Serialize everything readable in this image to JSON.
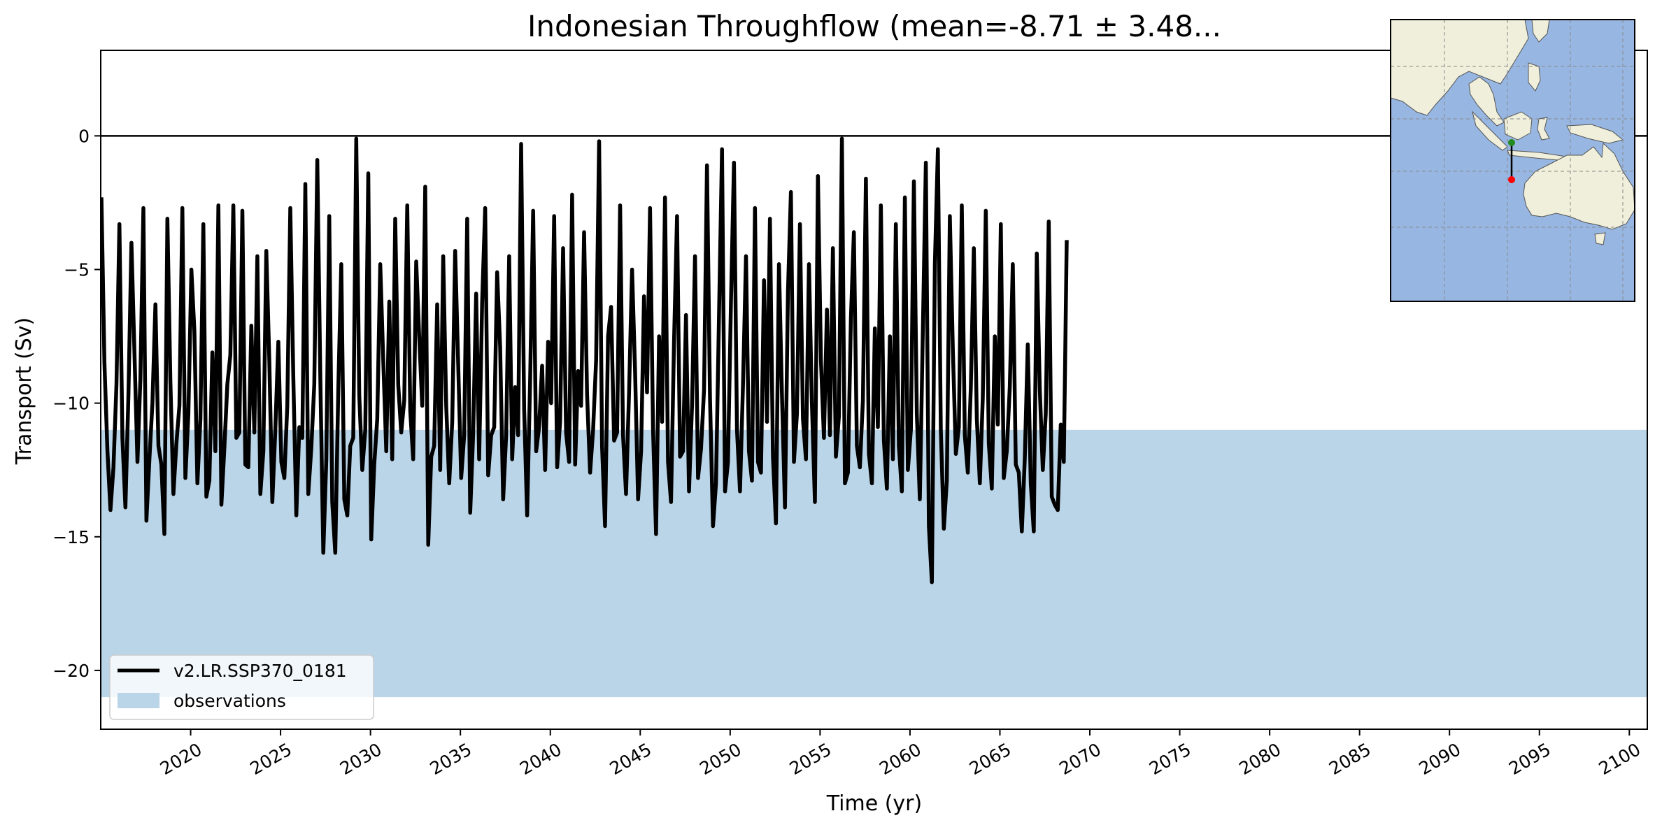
{
  "chart_data": {
    "type": "line",
    "title": "Indonesian Throughflow (mean=-8.71 ± 3.48...",
    "xlabel": "Time (yr)",
    "ylabel": "Transport (Sv)",
    "xlim": [
      2015,
      2101
    ],
    "ylim": [
      -22.2,
      3.2
    ],
    "x_ticks": [
      2020,
      2025,
      2030,
      2035,
      2040,
      2045,
      2050,
      2055,
      2060,
      2065,
      2070,
      2075,
      2080,
      2085,
      2090,
      2095,
      2100
    ],
    "x_tick_labels": [
      "2020",
      "2025",
      "2030",
      "2035",
      "2040",
      "2045",
      "2050",
      "2055",
      "2060",
      "2065",
      "2070",
      "2075",
      "2080",
      "2085",
      "2090",
      "2095",
      "2100"
    ],
    "y_ticks": [
      0,
      -5,
      -10,
      -15,
      -20
    ],
    "y_tick_labels": [
      "0",
      "−5",
      "−10",
      "−15",
      "−20"
    ],
    "zero_line": 0,
    "grid": false,
    "legend_position": "lower-left",
    "series": [
      {
        "name": "v2.LR.SSP370_0181",
        "color": "#000000",
        "x_start": 2015.04,
        "x_step": 0.1667,
        "values": [
          -2.3,
          -8.5,
          -11.8,
          -14.0,
          -12.4,
          -9.3,
          -3.3,
          -11.3,
          -13.9,
          -9.7,
          -4.0,
          -8.1,
          -12.2,
          -9.1,
          -2.7,
          -14.4,
          -12.1,
          -10.0,
          -6.3,
          -11.6,
          -12.3,
          -14.9,
          -3.1,
          -9.2,
          -13.4,
          -11.5,
          -10.1,
          -2.7,
          -12.8,
          -10.4,
          -5.0,
          -7.3,
          -13.0,
          -10.6,
          -3.3,
          -13.5,
          -12.9,
          -8.1,
          -11.8,
          -2.6,
          -13.8,
          -11.7,
          -9.3,
          -8.2,
          -2.6,
          -11.3,
          -11.1,
          -2.8,
          -12.3,
          -12.4,
          -7.1,
          -11.1,
          -4.5,
          -13.4,
          -11.8,
          -4.3,
          -8.4,
          -13.7,
          -11.0,
          -7.7,
          -12.2,
          -12.8,
          -10.1,
          -2.7,
          -9.0,
          -14.2,
          -10.9,
          -11.3,
          -1.8,
          -13.4,
          -11.7,
          -9.3,
          -0.9,
          -9.0,
          -15.6,
          -12.1,
          -3.0,
          -13.7,
          -15.6,
          -9.5,
          -4.8,
          -13.6,
          -14.2,
          -11.6,
          -11.3,
          -0.1,
          -9.7,
          -12.5,
          -11.0,
          -1.4,
          -15.1,
          -12.3,
          -10.6,
          -4.8,
          -8.4,
          -11.8,
          -6.2,
          -12.1,
          -3.1,
          -9.3,
          -11.1,
          -9.9,
          -2.6,
          -10.3,
          -12.1,
          -4.7,
          -7.5,
          -10.1,
          -1.9,
          -15.3,
          -12.0,
          -11.6,
          -6.3,
          -12.5,
          -4.5,
          -10.1,
          -13.0,
          -10.7,
          -4.3,
          -8.5,
          -12.8,
          -11.2,
          -3.1,
          -14.1,
          -11.1,
          -5.9,
          -12.1,
          -6.2,
          -2.7,
          -12.7,
          -11.2,
          -10.9,
          -5.1,
          -7.9,
          -13.6,
          -11.2,
          -4.5,
          -12.1,
          -9.4,
          -11.2,
          -0.3,
          -10.2,
          -14.2,
          -9.1,
          -2.8,
          -11.8,
          -10.9,
          -8.6,
          -12.5,
          -7.7,
          -10.0,
          -3.0,
          -12.4,
          -10.7,
          -4.2,
          -11.1,
          -12.2,
          -2.2,
          -12.3,
          -8.8,
          -10.1,
          -3.6,
          -9.7,
          -12.6,
          -11.0,
          -8.4,
          -0.2,
          -11.6,
          -14.6,
          -7.5,
          -6.4,
          -11.4,
          -11.1,
          -2.6,
          -11.2,
          -13.4,
          -9.6,
          -5.0,
          -8.8,
          -13.6,
          -11.8,
          -6.0,
          -9.6,
          -2.7,
          -11.0,
          -14.9,
          -7.5,
          -10.7,
          -2.3,
          -12.2,
          -13.7,
          -7.7,
          -3.0,
          -12.0,
          -11.8,
          -6.7,
          -13.3,
          -10.1,
          -4.5,
          -12.8,
          -11.7,
          -9.5,
          -1.1,
          -9.8,
          -14.6,
          -13.0,
          -6.7,
          -0.5,
          -13.3,
          -12.2,
          -6.2,
          -1.0,
          -11.0,
          -13.3,
          -9.3,
          -4.5,
          -11.8,
          -12.9,
          -2.7,
          -12.2,
          -12.6,
          -5.4,
          -10.7,
          -3.1,
          -12.0,
          -14.5,
          -4.8,
          -9.7,
          -13.9,
          -5.8,
          -2.1,
          -12.2,
          -10.4,
          -3.3,
          -10.6,
          -12.1,
          -4.8,
          -10.0,
          -13.7,
          -1.5,
          -8.4,
          -11.3,
          -6.5,
          -11.2,
          -4.2,
          -12.0,
          -10.5,
          -0.1,
          -13.0,
          -12.6,
          -6.8,
          -3.6,
          -11.6,
          -12.4,
          -9.9,
          -1.6,
          -11.9,
          -13.0,
          -7.2,
          -10.9,
          -2.6,
          -11.4,
          -13.2,
          -7.5,
          -12.1,
          -3.3,
          -11.6,
          -13.3,
          -2.3,
          -12.5,
          -11.0,
          -1.7,
          -10.4,
          -13.6,
          -7.3,
          -1.0,
          -14.6,
          -16.7,
          -4.8,
          -0.5,
          -11.0,
          -14.7,
          -12.9,
          -3.0,
          -8.0,
          -11.9,
          -10.9,
          -2.6,
          -11.2,
          -12.6,
          -9.4,
          -4.2,
          -10.6,
          -13.0,
          -9.8,
          -2.8,
          -11.5,
          -13.2,
          -7.5,
          -10.8,
          -3.3,
          -12.8,
          -11.8,
          -9.4,
          -4.8,
          -12.3,
          -12.6,
          -14.8,
          -12.1,
          -7.8,
          -13.0,
          -14.8,
          -4.4,
          -9.5,
          -12.5,
          -10.4,
          -3.2,
          -13.5,
          -13.8,
          -14.0,
          -10.8,
          -12.2,
          -3.9
        ]
      },
      {
        "name": "observations",
        "type": "band",
        "color": "#bbd5e8",
        "y_range": [
          -21,
          -11
        ]
      }
    ]
  },
  "inset_map": {
    "land_color": "#efefdb",
    "ocean_color": "#97b6e1",
    "section_start_color": "#228b22",
    "section_end_color": "#ff0000"
  }
}
